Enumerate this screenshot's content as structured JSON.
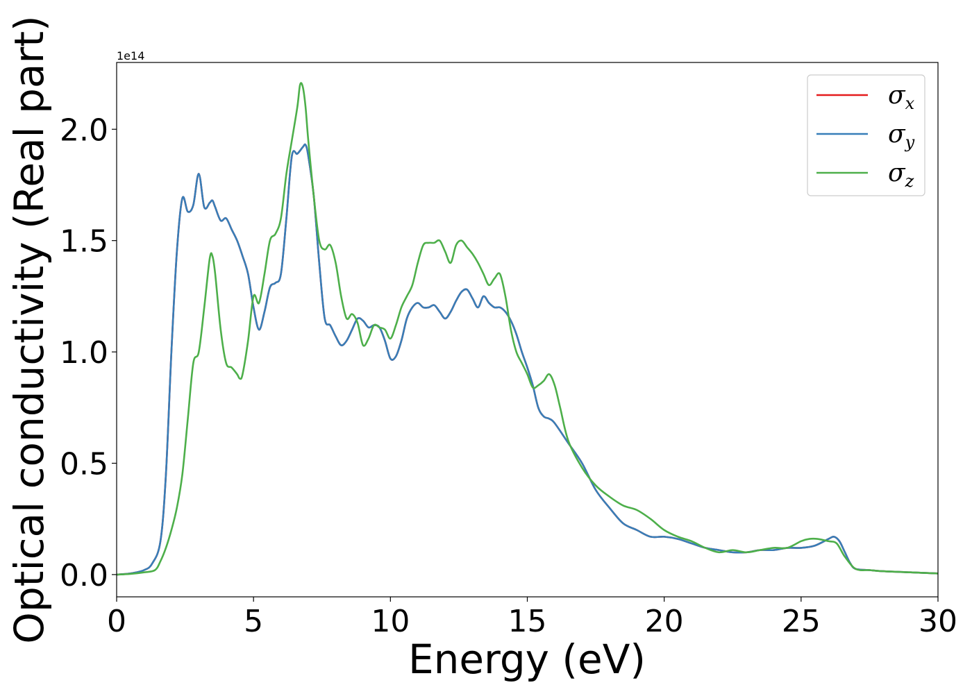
{
  "chart_data": {
    "type": "line",
    "title": "",
    "xlabel": "Energy (eV)",
    "ylabel": "Optical conductivity (Real part)",
    "y_offset_label": "1e14",
    "xlim": [
      0,
      30
    ],
    "ylim": [
      -0.1,
      2.3
    ],
    "xticks": [
      0,
      5,
      10,
      15,
      20,
      25,
      30
    ],
    "xtick_labels": [
      "0",
      "5",
      "10",
      "15",
      "20",
      "25",
      "30"
    ],
    "yticks": [
      0.0,
      0.5,
      1.0,
      1.5,
      2.0
    ],
    "ytick_labels": [
      "0.0",
      "0.5",
      "1.0",
      "1.5",
      "2.0"
    ],
    "grid": false,
    "legend_position": "top-right",
    "series": [
      {
        "name": "σ_x",
        "legend_base": "σ",
        "legend_sub": "x",
        "color": "#e41a1c",
        "x": [
          0,
          0.5,
          1.0,
          1.3,
          1.6,
          1.8,
          2.0,
          2.2,
          2.4,
          2.6,
          2.8,
          3.0,
          3.2,
          3.4,
          3.5,
          3.6,
          3.8,
          4.0,
          4.2,
          4.4,
          4.6,
          4.8,
          5.0,
          5.2,
          5.4,
          5.6,
          5.8,
          6.0,
          6.2,
          6.4,
          6.6,
          6.8,
          6.9,
          7.0,
          7.2,
          7.4,
          7.6,
          7.8,
          8.0,
          8.2,
          8.4,
          8.6,
          8.8,
          9.0,
          9.2,
          9.4,
          9.6,
          9.8,
          10.0,
          10.2,
          10.4,
          10.6,
          10.8,
          11.0,
          11.2,
          11.4,
          11.6,
          11.8,
          12.0,
          12.2,
          12.4,
          12.6,
          12.8,
          13.0,
          13.2,
          13.4,
          13.6,
          13.8,
          14.0,
          14.2,
          14.4,
          14.6,
          14.8,
          15.0,
          15.2,
          15.4,
          15.6,
          15.8,
          16.0,
          16.5,
          17.0,
          17.5,
          18.0,
          18.5,
          19.0,
          19.5,
          20.0,
          20.5,
          21.0,
          21.5,
          22.0,
          22.5,
          23.0,
          23.5,
          24.0,
          24.5,
          25.0,
          25.5,
          26.0,
          26.2,
          26.4,
          26.6,
          26.8,
          27.0,
          27.5,
          28.0,
          29.0,
          30.0
        ],
        "y": [
          0.0,
          0.005,
          0.02,
          0.05,
          0.15,
          0.45,
          1.0,
          1.45,
          1.69,
          1.63,
          1.66,
          1.8,
          1.65,
          1.67,
          1.68,
          1.65,
          1.59,
          1.6,
          1.55,
          1.5,
          1.43,
          1.35,
          1.2,
          1.1,
          1.18,
          1.29,
          1.31,
          1.35,
          1.6,
          1.88,
          1.89,
          1.92,
          1.93,
          1.88,
          1.7,
          1.4,
          1.15,
          1.12,
          1.07,
          1.03,
          1.05,
          1.1,
          1.15,
          1.14,
          1.11,
          1.12,
          1.11,
          1.05,
          0.97,
          0.98,
          1.05,
          1.15,
          1.2,
          1.22,
          1.2,
          1.2,
          1.21,
          1.18,
          1.15,
          1.18,
          1.23,
          1.27,
          1.28,
          1.24,
          1.2,
          1.25,
          1.22,
          1.2,
          1.2,
          1.18,
          1.14,
          1.08,
          1.0,
          0.93,
          0.85,
          0.75,
          0.71,
          0.7,
          0.68,
          0.59,
          0.5,
          0.38,
          0.3,
          0.23,
          0.2,
          0.17,
          0.17,
          0.16,
          0.14,
          0.12,
          0.11,
          0.1,
          0.1,
          0.11,
          0.11,
          0.12,
          0.12,
          0.13,
          0.16,
          0.17,
          0.15,
          0.1,
          0.05,
          0.025,
          0.02,
          0.015,
          0.01,
          0.005
        ]
      },
      {
        "name": "σ_y",
        "legend_base": "σ",
        "legend_sub": "y",
        "color": "#377eb8",
        "x": [
          0,
          0.5,
          1.0,
          1.3,
          1.6,
          1.8,
          2.0,
          2.2,
          2.4,
          2.6,
          2.8,
          3.0,
          3.2,
          3.4,
          3.5,
          3.6,
          3.8,
          4.0,
          4.2,
          4.4,
          4.6,
          4.8,
          5.0,
          5.2,
          5.4,
          5.6,
          5.8,
          6.0,
          6.2,
          6.4,
          6.6,
          6.8,
          6.9,
          7.0,
          7.2,
          7.4,
          7.6,
          7.8,
          8.0,
          8.2,
          8.4,
          8.6,
          8.8,
          9.0,
          9.2,
          9.4,
          9.6,
          9.8,
          10.0,
          10.2,
          10.4,
          10.6,
          10.8,
          11.0,
          11.2,
          11.4,
          11.6,
          11.8,
          12.0,
          12.2,
          12.4,
          12.6,
          12.8,
          13.0,
          13.2,
          13.4,
          13.6,
          13.8,
          14.0,
          14.2,
          14.4,
          14.6,
          14.8,
          15.0,
          15.2,
          15.4,
          15.6,
          15.8,
          16.0,
          16.5,
          17.0,
          17.5,
          18.0,
          18.5,
          19.0,
          19.5,
          20.0,
          20.5,
          21.0,
          21.5,
          22.0,
          22.5,
          23.0,
          23.5,
          24.0,
          24.5,
          25.0,
          25.5,
          26.0,
          26.2,
          26.4,
          26.6,
          26.8,
          27.0,
          27.5,
          28.0,
          29.0,
          30.0
        ],
        "y": [
          0.0,
          0.005,
          0.02,
          0.05,
          0.15,
          0.45,
          1.0,
          1.45,
          1.69,
          1.63,
          1.66,
          1.8,
          1.65,
          1.67,
          1.68,
          1.65,
          1.59,
          1.6,
          1.55,
          1.5,
          1.43,
          1.35,
          1.2,
          1.1,
          1.18,
          1.29,
          1.31,
          1.35,
          1.6,
          1.88,
          1.89,
          1.92,
          1.93,
          1.88,
          1.7,
          1.4,
          1.15,
          1.12,
          1.07,
          1.03,
          1.05,
          1.1,
          1.15,
          1.14,
          1.11,
          1.12,
          1.11,
          1.05,
          0.97,
          0.98,
          1.05,
          1.15,
          1.2,
          1.22,
          1.2,
          1.2,
          1.21,
          1.18,
          1.15,
          1.18,
          1.23,
          1.27,
          1.28,
          1.24,
          1.2,
          1.25,
          1.22,
          1.2,
          1.2,
          1.18,
          1.14,
          1.08,
          1.0,
          0.93,
          0.85,
          0.75,
          0.71,
          0.7,
          0.68,
          0.59,
          0.5,
          0.38,
          0.3,
          0.23,
          0.2,
          0.17,
          0.17,
          0.16,
          0.14,
          0.12,
          0.11,
          0.1,
          0.1,
          0.11,
          0.11,
          0.12,
          0.12,
          0.13,
          0.16,
          0.17,
          0.15,
          0.1,
          0.05,
          0.025,
          0.02,
          0.015,
          0.01,
          0.005
        ]
      },
      {
        "name": "σ_z",
        "legend_base": "σ",
        "legend_sub": "z",
        "color": "#4daf4a",
        "x": [
          0,
          0.5,
          1.0,
          1.4,
          1.6,
          1.8,
          2.0,
          2.2,
          2.4,
          2.6,
          2.8,
          3.0,
          3.2,
          3.4,
          3.5,
          3.6,
          3.8,
          4.0,
          4.2,
          4.4,
          4.5,
          4.6,
          4.8,
          5.0,
          5.2,
          5.4,
          5.6,
          5.8,
          6.0,
          6.2,
          6.4,
          6.6,
          6.7,
          6.8,
          6.9,
          7.0,
          7.2,
          7.4,
          7.6,
          7.8,
          8.0,
          8.2,
          8.4,
          8.6,
          8.8,
          9.0,
          9.2,
          9.4,
          9.6,
          9.8,
          10.0,
          10.2,
          10.4,
          10.6,
          10.8,
          11.0,
          11.2,
          11.4,
          11.6,
          11.8,
          12.0,
          12.2,
          12.4,
          12.6,
          12.8,
          13.0,
          13.2,
          13.4,
          13.6,
          13.8,
          14.0,
          14.2,
          14.4,
          14.6,
          14.8,
          15.0,
          15.2,
          15.4,
          15.6,
          15.8,
          16.0,
          16.2,
          16.5,
          17.0,
          17.5,
          18.0,
          18.5,
          19.0,
          19.5,
          20.0,
          20.5,
          21.0,
          21.5,
          22.0,
          22.5,
          23.0,
          23.5,
          24.0,
          24.5,
          25.0,
          25.3,
          25.6,
          26.0,
          26.3,
          26.6,
          27.0,
          27.5,
          28.0,
          29.0,
          30.0
        ],
        "y": [
          0.0,
          0.003,
          0.01,
          0.02,
          0.06,
          0.12,
          0.2,
          0.3,
          0.45,
          0.7,
          0.95,
          1.0,
          1.2,
          1.42,
          1.43,
          1.35,
          1.1,
          0.95,
          0.93,
          0.9,
          0.88,
          0.9,
          1.05,
          1.25,
          1.22,
          1.35,
          1.5,
          1.53,
          1.6,
          1.8,
          1.95,
          2.1,
          2.2,
          2.19,
          2.1,
          1.95,
          1.7,
          1.5,
          1.46,
          1.48,
          1.4,
          1.25,
          1.15,
          1.17,
          1.13,
          1.03,
          1.06,
          1.12,
          1.11,
          1.1,
          1.06,
          1.12,
          1.2,
          1.25,
          1.3,
          1.4,
          1.48,
          1.49,
          1.49,
          1.5,
          1.45,
          1.4,
          1.48,
          1.5,
          1.47,
          1.44,
          1.4,
          1.35,
          1.3,
          1.33,
          1.35,
          1.25,
          1.1,
          1.0,
          0.95,
          0.9,
          0.84,
          0.85,
          0.87,
          0.9,
          0.85,
          0.75,
          0.6,
          0.48,
          0.4,
          0.35,
          0.31,
          0.29,
          0.25,
          0.2,
          0.17,
          0.15,
          0.12,
          0.1,
          0.11,
          0.1,
          0.11,
          0.12,
          0.12,
          0.15,
          0.16,
          0.16,
          0.15,
          0.14,
          0.08,
          0.025,
          0.02,
          0.015,
          0.01,
          0.005
        ]
      }
    ]
  }
}
